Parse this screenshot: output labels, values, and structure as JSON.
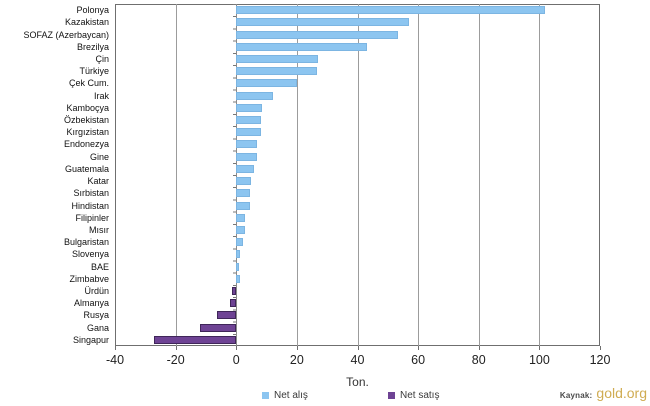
{
  "chart_data": {
    "type": "bar",
    "orientation": "horizontal",
    "title": "",
    "xlabel": "Ton.",
    "ylabel": "",
    "xlim": [
      -40,
      120
    ],
    "xticks": [
      -40,
      -20,
      0,
      20,
      40,
      60,
      80,
      100,
      120
    ],
    "grid": true,
    "categories": [
      "Polonya",
      "Kazakistan",
      "SOFAZ (Azerbaycan)",
      "Brezilya",
      "Çin",
      "Türkiye",
      "Çek Cum.",
      "Irak",
      "Kamboçya",
      "Özbekistan",
      "Kırgızistan",
      "Endonezya",
      "Gine",
      "Guatemala",
      "Katar",
      "Sırbistan",
      "Hindistan",
      "Filipinler",
      "Mısır",
      "Bulgaristan",
      "Slovenya",
      "BAE",
      "Zimbabve",
      "Ürdün",
      "Almanya",
      "Rusya",
      "Gana",
      "Singapur"
    ],
    "values": [
      102,
      57,
      53.5,
      43,
      27,
      26.5,
      20,
      12,
      8.5,
      8,
      8,
      7,
      7,
      6,
      5,
      4.5,
      4.4,
      3,
      2.8,
      2.3,
      1.2,
      1,
      1.2,
      -1.4,
      -2,
      -6.5,
      -12,
      -27
    ],
    "legend": [
      {
        "label": "Net alış",
        "color": "#8CC5F0"
      },
      {
        "label": "Net satış",
        "color": "#6E4394"
      }
    ],
    "legend_position": "bottom",
    "colors": {
      "positive_fill": "#8CC5F0",
      "positive_border": "#7CB5E2",
      "negative_fill": "#6E4394",
      "negative_border": "#3F2659",
      "gridline": "#9c9c9c",
      "text": "#222222"
    }
  },
  "source": {
    "prefix": "Kaynak:",
    "name": "gold.org",
    "name_color": "#D0AC52"
  }
}
